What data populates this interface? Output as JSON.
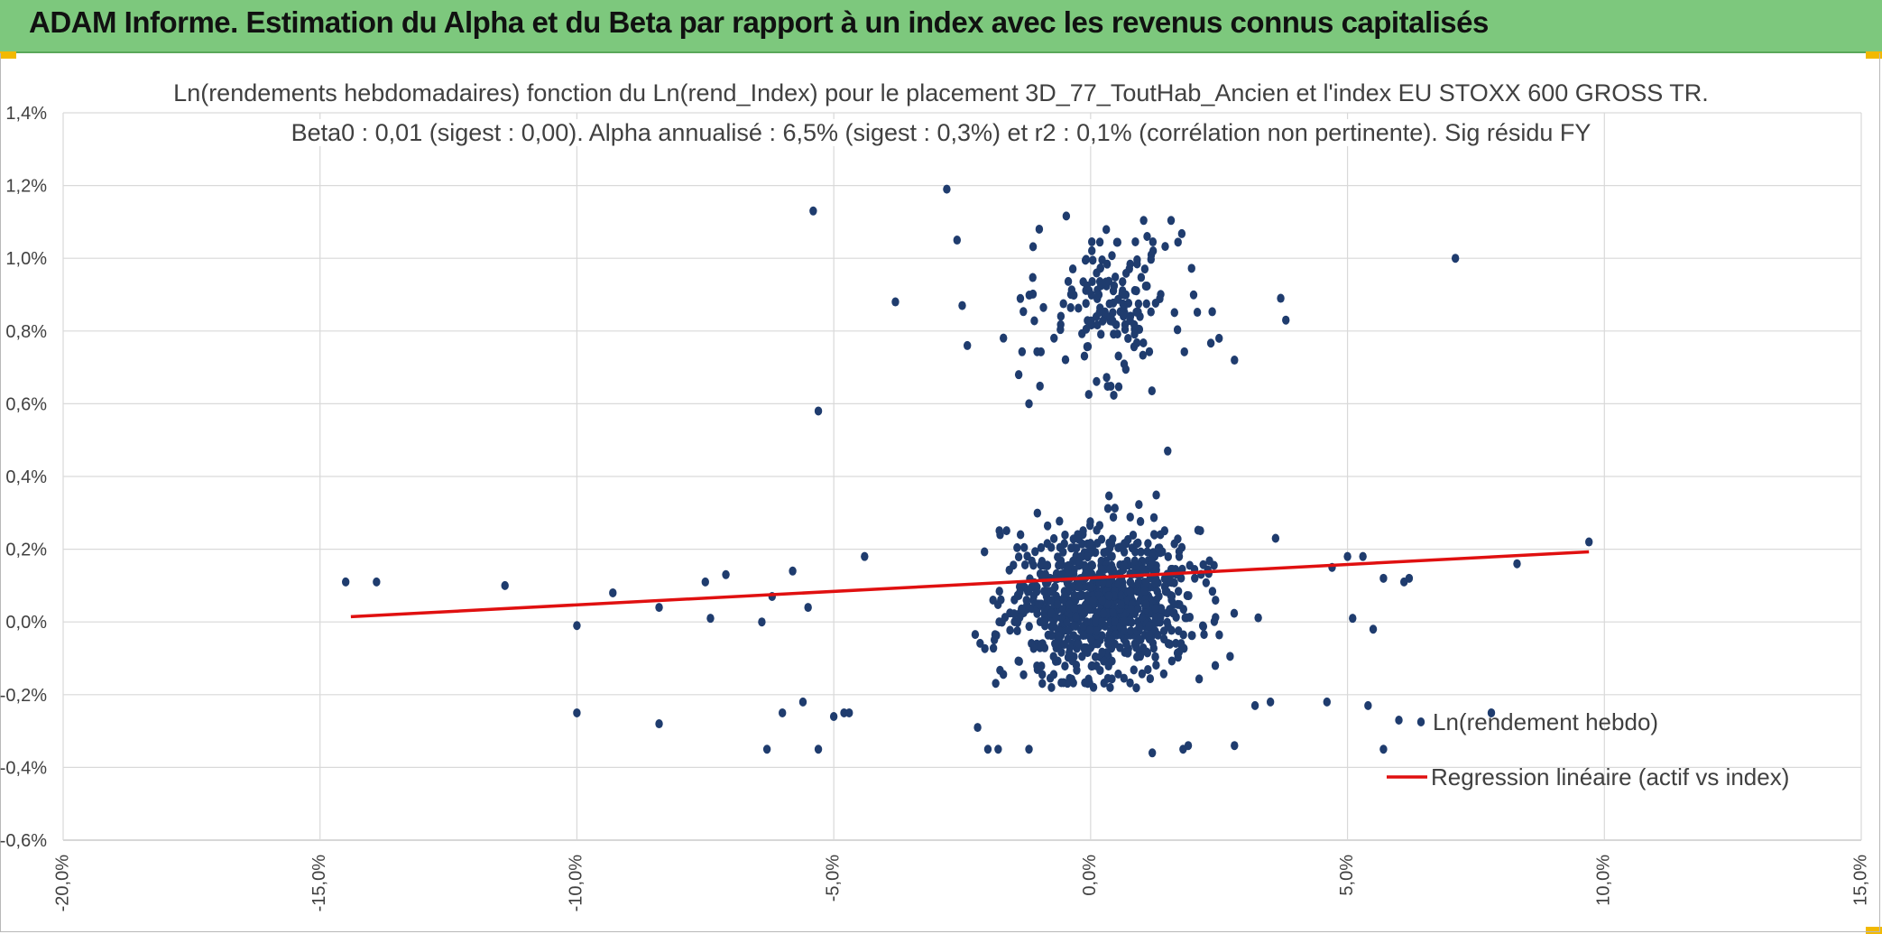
{
  "header": {
    "title": "ADAM Informe. Estimation du Alpha et du Beta par rapport à un index avec les revenus connus capitalisés",
    "accent_color": "#7dc87d",
    "corner_color": "#f2b900"
  },
  "chart_data": {
    "type": "scatter",
    "title": "Ln(rendements hebdomadaires) fonction du Ln(rend_Index) pour le placement 3D_77_ToutHab_Ancien et l'index EU STOXX 600 GROSS TR.",
    "subtitle": "Beta0 : 0,01 (sigest : 0,00). Alpha annualisé : 6,5% (sigest : 0,3%) et r2 : 0,1% (corrélation non pertinente). Sig résidu FY",
    "xlabel": "",
    "ylabel": "",
    "xlim": [
      -0.2,
      0.15
    ],
    "ylim": [
      -0.006,
      0.014
    ],
    "x_ticks": [
      -0.2,
      -0.15,
      -0.1,
      -0.05,
      0.0,
      0.05,
      0.1,
      0.15
    ],
    "x_tick_labels": [
      "-20,0%",
      "-15,0%",
      "-10,0%",
      "-5,0%",
      "0,0%",
      "5,0%",
      "10,0%",
      "15,0%"
    ],
    "y_ticks": [
      -0.006,
      -0.004,
      -0.002,
      0.0,
      0.002,
      0.004,
      0.006,
      0.008,
      0.01,
      0.012,
      0.014
    ],
    "y_tick_labels": [
      "-0,6%",
      "-0,4%",
      "-0,2%",
      "0,0%",
      "0,2%",
      "0,4%",
      "0,6%",
      "0,8%",
      "1,0%",
      "1,2%",
      "1,4%"
    ],
    "grid": true,
    "legend_position": "bottom-right",
    "series": [
      {
        "name": "Ln(rendement hebdo)",
        "kind": "scatter",
        "color": "#1f3c6e",
        "cluster_main": {
          "count": 900,
          "x_center": 0.002,
          "x_spread": 0.017,
          "y_center": 0.0005,
          "y_spread": 0.0011,
          "y_min": -0.0018,
          "y_max": 0.0036
        },
        "cluster_upper": {
          "count": 165,
          "x_center": 0.004,
          "x_spread": 0.013,
          "y_center": 0.0088,
          "y_spread": 0.0011,
          "y_min": 0.0062,
          "y_max": 0.0114
        },
        "points": [
          [
            -0.145,
            0.0011
          ],
          [
            -0.139,
            0.0011
          ],
          [
            -0.114,
            0.001
          ],
          [
            -0.1,
            -0.0001
          ],
          [
            -0.1,
            -0.0025
          ],
          [
            -0.093,
            0.0008
          ],
          [
            -0.084,
            0.0004
          ],
          [
            -0.084,
            -0.0028
          ],
          [
            -0.075,
            0.0011
          ],
          [
            -0.074,
            0.0001
          ],
          [
            -0.071,
            0.0013
          ],
          [
            -0.064,
            0.0
          ],
          [
            -0.063,
            -0.0035
          ],
          [
            -0.062,
            0.0007
          ],
          [
            -0.06,
            -0.0025
          ],
          [
            -0.058,
            0.0014
          ],
          [
            -0.056,
            -0.0022
          ],
          [
            -0.055,
            0.0004
          ],
          [
            -0.054,
            0.0113
          ],
          [
            -0.053,
            0.0058
          ],
          [
            -0.053,
            -0.0035
          ],
          [
            -0.05,
            -0.0026
          ],
          [
            -0.048,
            -0.0025
          ],
          [
            -0.047,
            -0.0025
          ],
          [
            -0.044,
            0.0018
          ],
          [
            -0.038,
            0.0088
          ],
          [
            -0.028,
            0.0119
          ],
          [
            -0.026,
            0.0105
          ],
          [
            -0.025,
            0.0087
          ],
          [
            -0.024,
            0.0076
          ],
          [
            -0.022,
            -0.0029
          ],
          [
            -0.02,
            -0.0035
          ],
          [
            -0.018,
            -0.0035
          ],
          [
            -0.014,
            0.0068
          ],
          [
            -0.012,
            0.006
          ],
          [
            -0.012,
            -0.0035
          ],
          [
            -0.01,
            0.0108
          ],
          [
            0.011,
            0.0106
          ],
          [
            0.012,
            -0.0036
          ],
          [
            0.015,
            0.0047
          ],
          [
            0.018,
            -0.0035
          ],
          [
            0.019,
            -0.0034
          ],
          [
            0.025,
            0.0078
          ],
          [
            0.028,
            0.0072
          ],
          [
            0.028,
            -0.0034
          ],
          [
            0.032,
            -0.0023
          ],
          [
            0.035,
            -0.0022
          ],
          [
            0.036,
            0.0023
          ],
          [
            0.037,
            0.0089
          ],
          [
            0.038,
            0.0083
          ],
          [
            0.046,
            -0.0022
          ],
          [
            0.047,
            0.0015
          ],
          [
            0.05,
            0.0018
          ],
          [
            0.051,
            0.0001
          ],
          [
            0.053,
            0.0018
          ],
          [
            0.054,
            -0.0023
          ],
          [
            0.055,
            -0.0002
          ],
          [
            0.057,
            -0.0035
          ],
          [
            0.057,
            0.0012
          ],
          [
            0.06,
            -0.0027
          ],
          [
            0.061,
            0.0011
          ],
          [
            0.062,
            0.0012
          ],
          [
            0.071,
            0.01
          ],
          [
            0.078,
            -0.0025
          ],
          [
            0.083,
            0.0016
          ],
          [
            0.097,
            0.0022
          ]
        ]
      },
      {
        "name": "Regression linéaire (actif vs index)",
        "kind": "line",
        "color": "#e01010",
        "beta": 0.0074,
        "alpha_weekly": 0.00121,
        "x_range": [
          -0.144,
          0.097
        ]
      }
    ]
  }
}
